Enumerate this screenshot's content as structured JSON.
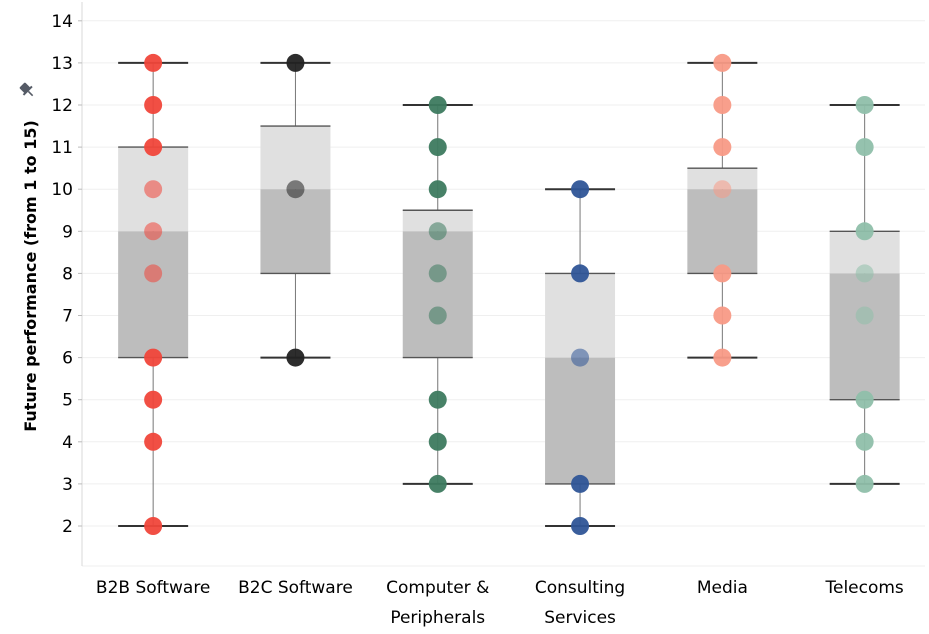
{
  "chart_data": {
    "type": "box",
    "ylabel": "Future performance (from 1 to 15)",
    "ylim": [
      1,
      14
    ],
    "yticks": [
      2,
      3,
      4,
      5,
      6,
      7,
      8,
      9,
      10,
      11,
      12,
      13,
      14
    ],
    "grid": true,
    "categories": [
      {
        "label": [
          "B2B Software"
        ],
        "color": "#f0463a",
        "box": {
          "min": 2,
          "q1": 6,
          "median": 9,
          "q3": 11,
          "max": 13
        },
        "points": [
          13,
          12,
          11,
          10,
          9,
          8,
          6,
          5,
          4,
          2
        ]
      },
      {
        "label": [
          "B2C Software"
        ],
        "color": "#222222",
        "box": {
          "min": 6,
          "q1": 8,
          "median": 10,
          "q3": 11.5,
          "max": 13
        },
        "points": [
          13,
          10,
          6
        ]
      },
      {
        "label": [
          "Computer &",
          "Peripherals"
        ],
        "color": "#3d7a5f",
        "box": {
          "min": 3,
          "q1": 6,
          "median": 9,
          "q3": 9.5,
          "max": 12
        },
        "points": [
          12,
          11,
          10,
          9,
          8,
          7,
          5,
          4,
          3
        ]
      },
      {
        "label": [
          "Consulting",
          "Services"
        ],
        "color": "#2f5597",
        "box": {
          "min": 2,
          "q1": 3,
          "median": 6,
          "q3": 8,
          "max": 10
        },
        "points": [
          10,
          8,
          6,
          3,
          2
        ]
      },
      {
        "label": [
          "Media"
        ],
        "color": "#f89a86",
        "box": {
          "min": 6,
          "q1": 8,
          "median": 10,
          "q3": 10.5,
          "max": 13
        },
        "points": [
          13,
          12,
          11,
          10,
          8,
          7,
          6
        ]
      },
      {
        "label": [
          "Telecoms"
        ],
        "color": "#8fbfaa",
        "box": {
          "min": 3,
          "q1": 5,
          "median": 8,
          "q3": 9,
          "max": 12
        },
        "points": [
          12,
          11,
          9,
          8,
          7,
          5,
          4,
          3
        ]
      }
    ]
  }
}
